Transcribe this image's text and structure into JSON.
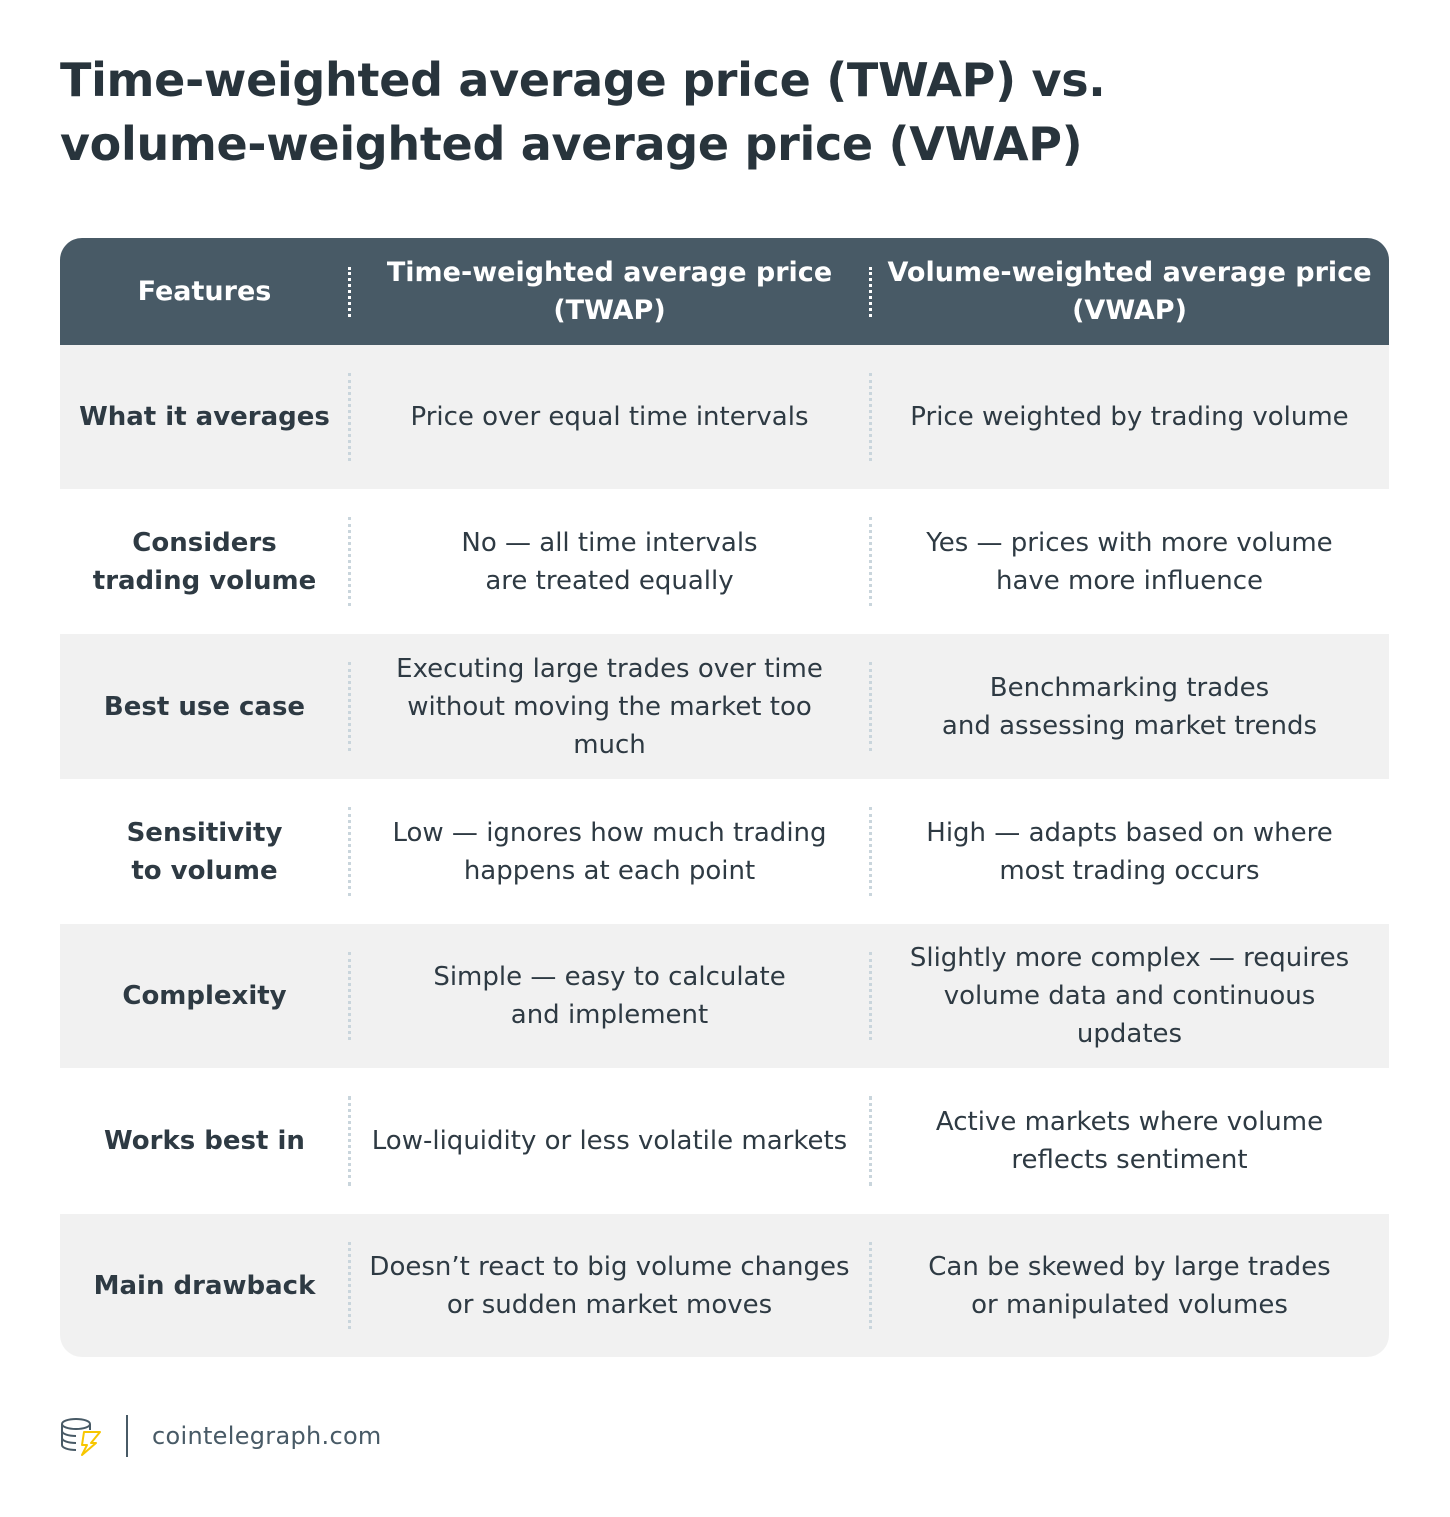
{
  "title": {
    "line1": "Time-weighted average price (TWAP) vs.",
    "line2": "volume-weighted average price (VWAP)"
  },
  "table": {
    "headers": [
      "Features",
      "Time-weighted average price\n(TWAP)",
      "Volume-weighted average price\n(VWAP)"
    ],
    "rows": [
      {
        "feature": "What it averages",
        "twap": "Price over equal time intervals",
        "vwap": "Price weighted by trading volume"
      },
      {
        "feature": "Considers\ntrading volume",
        "twap": "No — all time intervals\nare treated equally",
        "vwap": "Yes — prices with more volume\nhave more influence"
      },
      {
        "feature": "Best use case",
        "twap": "Executing large trades over time\nwithout moving the market too\nmuch",
        "vwap": "Benchmarking trades\nand assessing market trends"
      },
      {
        "feature": "Sensitivity\nto volume",
        "twap": "Low — ignores how much trading\nhappens at each point",
        "vwap": "High — adapts based on where\nmost trading occurs"
      },
      {
        "feature": "Complexity",
        "twap": "Simple — easy to calculate\nand implement",
        "vwap": "Slightly more complex — requires\nvolume data and continuous\nupdates"
      },
      {
        "feature": "Works best in",
        "twap": "Low-liquidity or less volatile markets",
        "vwap": "Active markets where volume\nreflects sentiment"
      },
      {
        "feature": "Main drawback",
        "twap": "Doesn’t react to big volume changes\nor sudden market moves",
        "vwap": "Can be skewed by large trades\nor manipulated volumes"
      }
    ]
  },
  "footer": {
    "logo_icon": "cointelegraph-logo-icon",
    "site": "cointelegraph.com"
  },
  "colors": {
    "header_bg": "#485a66",
    "row_shade": "#f1f1f1",
    "text": "#2e3a43",
    "logo_accent": "#f7c600"
  }
}
